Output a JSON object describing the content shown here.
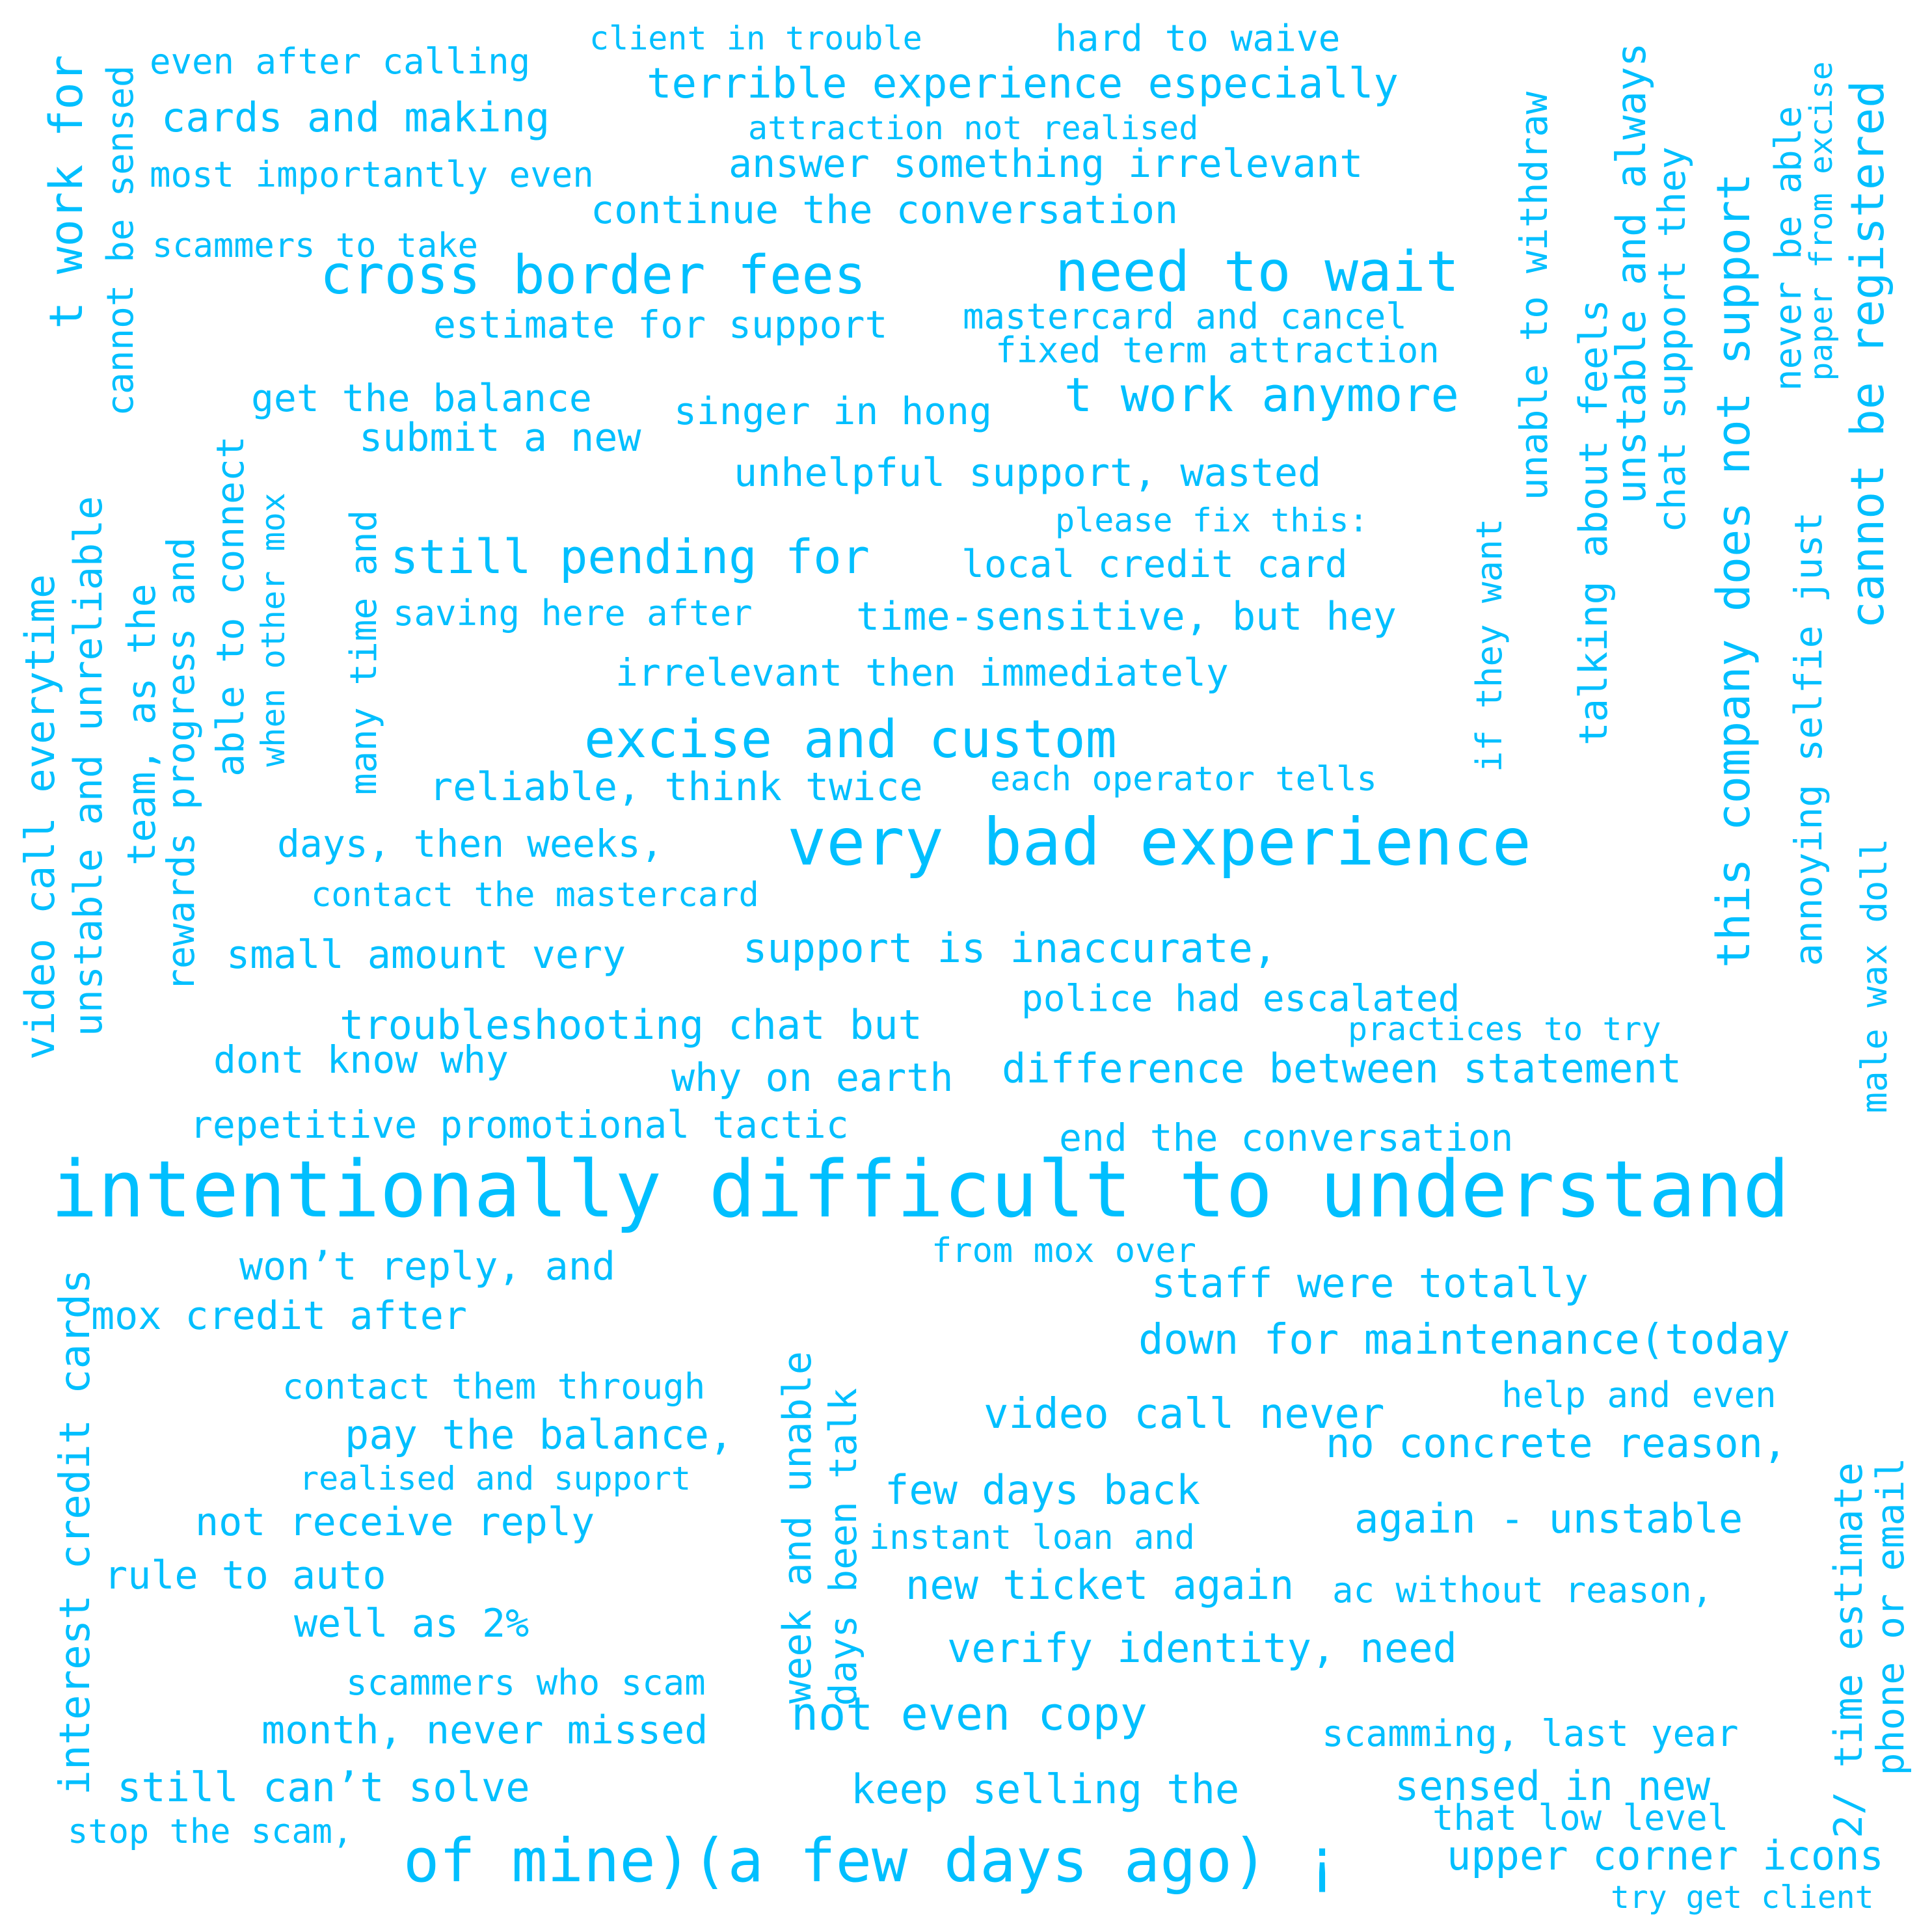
{
  "word_cloud": {
    "color": "#00bfff",
    "background": "#ffffff",
    "phrases": [
      "intentionally difficult to understand",
      "very bad experience",
      "of mine)(a few days ago) ¡",
      "cross border fees",
      "need to wait",
      "excise and custom",
      "t work anymore",
      "still pending for",
      "this company does not support",
      "cannot be registered",
      "t work for",
      "terrible experience especially",
      "unhelpful support, wasted",
      "support is inaccurate,",
      "difference between statement",
      "end the conversation",
      "troubleshooting chat but",
      "repetitive promotional tactic",
      "continue the conversation",
      "answer something irrelevant",
      "estimate for support",
      "get the balance",
      "singer in hong",
      "submit a new",
      "local credit card",
      "time-sensitive, but hey",
      "irrelevant then immediately",
      "reliable, think twice",
      "days, then weeks,",
      "contact the mastercard",
      "small amount very",
      "police had escalated",
      "dont know why",
      "why on earth",
      "cards and making",
      "even after calling",
      "most importantly even",
      "scammers to take",
      "client in trouble",
      "hard to waive",
      "attraction not realised",
      "mastercard and cancel",
      "fixed term attraction",
      "please fix this:",
      "saving here after",
      "each operator tells",
      "practices to try",
      "video call everytime",
      "unstable and unreliable",
      "cannot be sensed",
      "team, as the",
      "rewards progress and",
      "able to connect",
      "when other mox",
      "many time and",
      "unable to withdraw",
      "if they want",
      "talking about feels",
      "unstable and always",
      "chat support they",
      "annoying selfie just",
      "never be able",
      "paper from excise",
      "male wax doll",
      "won’t reply, and",
      "mox credit after",
      "contact them through",
      "pay the balance,",
      "realised and support",
      "not receive reply",
      "rule to auto",
      "well as 2%",
      "scammers who scam",
      "month, never missed",
      "still can’t solve",
      "stop the scam,",
      "from mox over",
      "staff were totally",
      "down for maintenance(today",
      "video call never",
      "help and even",
      "no concrete reason,",
      "few days back",
      "instant loan and",
      "again - unstable",
      "new ticket again",
      "ac without reason,",
      "verify identity, need",
      "not even copy",
      "scamming, last year",
      "keep selling the",
      "sensed in new",
      "that low level",
      "upper corner icons",
      "try get client",
      "interest credit cards",
      "week and unable",
      "days been talk",
      "2/ time estimate",
      "phone or email"
    ]
  }
}
